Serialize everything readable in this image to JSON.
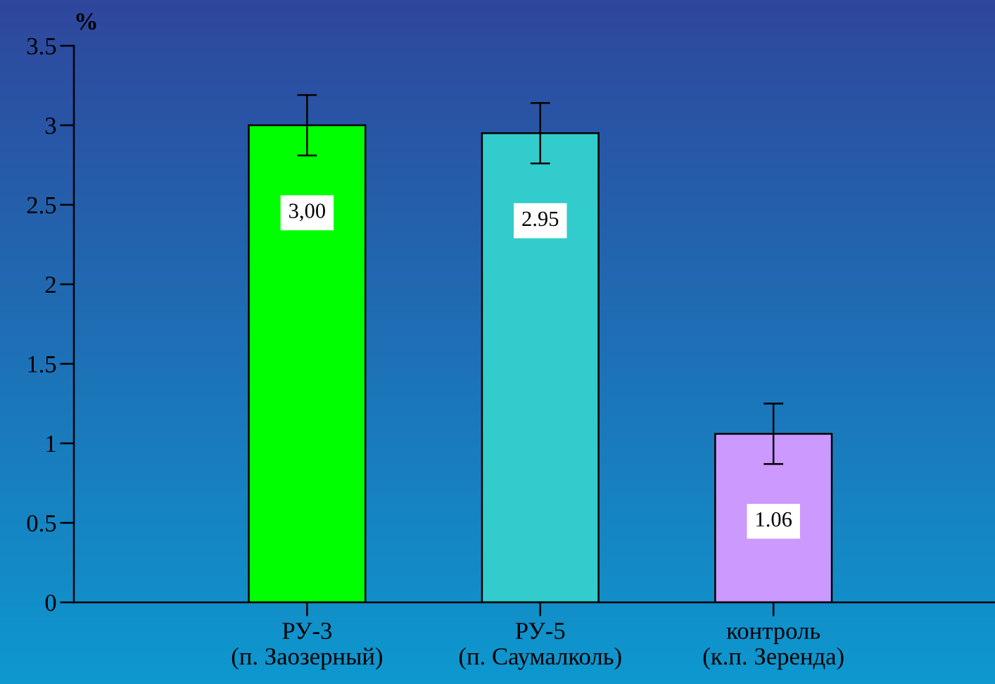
{
  "chart_data": {
    "type": "bar",
    "ylabel": "%",
    "categories": [
      "РУ-3\n(п. Заозерный)",
      "РУ-5\n(п. Саумалколь)",
      "контроль\n(к.п. Зеренда)"
    ],
    "values": [
      3.0,
      2.95,
      1.06
    ],
    "colors": [
      "#00ff00",
      "#33cccc",
      "#cc99ff"
    ],
    "errors": [
      0.19,
      0.19,
      0.19
    ],
    "value_labels": [
      "3,00",
      "2.95",
      "1.06"
    ],
    "ylim": [
      0,
      3.5
    ],
    "yticks": [
      0,
      0.5,
      1,
      1.5,
      2,
      2.5,
      3,
      3.5
    ],
    "grid": false,
    "legend": false
  }
}
